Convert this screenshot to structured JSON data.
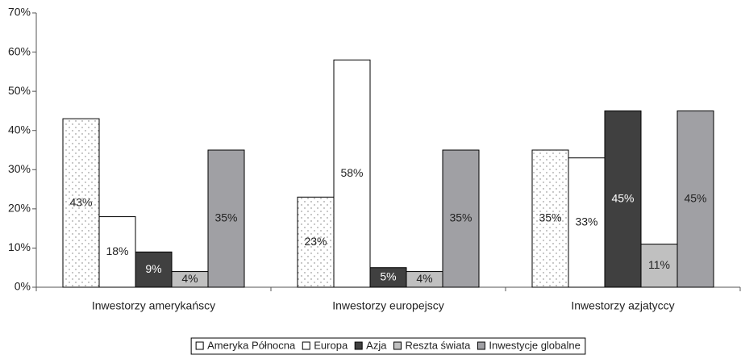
{
  "chart_data": {
    "type": "bar",
    "categories": [
      "Inwestorzy amerykańscy",
      "Inwestorzy europejscy",
      "Inwestorzy azjatyccy"
    ],
    "series": [
      {
        "name": "Ameryka Północna",
        "color": "#ffffff",
        "pattern": "dots",
        "values": [
          43,
          23,
          35
        ],
        "value_labels": [
          "43%",
          "23%",
          "35%"
        ]
      },
      {
        "name": "Europa",
        "color": "#ffffff",
        "values": [
          18,
          58,
          33
        ],
        "value_labels": [
          "18%",
          "58%",
          "33%"
        ]
      },
      {
        "name": "Azja",
        "color": "#404040",
        "values": [
          9,
          5,
          45
        ],
        "value_labels": [
          "9%",
          "5%",
          "45%"
        ]
      },
      {
        "name": "Reszta świata",
        "color": "#c0c0c0",
        "values": [
          4,
          4,
          11
        ],
        "value_labels": [
          "4%",
          "4%",
          "11%"
        ]
      },
      {
        "name": "Inwestycje globalne",
        "color": "#a0a0a4",
        "values": [
          35,
          35,
          45
        ],
        "value_labels": [
          "35%",
          "35%",
          "45%"
        ]
      }
    ],
    "ylim": [
      0,
      70
    ],
    "yticks": [
      {
        "value": 0,
        "label": "0%"
      },
      {
        "value": 10,
        "label": "10%"
      },
      {
        "value": 20,
        "label": "20%"
      },
      {
        "value": 30,
        "label": "30%"
      },
      {
        "value": 40,
        "label": "40%"
      },
      {
        "value": 50,
        "label": "50%"
      },
      {
        "value": 60,
        "label": "60%"
      },
      {
        "value": 70,
        "label": "70%"
      }
    ],
    "legend": "bottom"
  }
}
